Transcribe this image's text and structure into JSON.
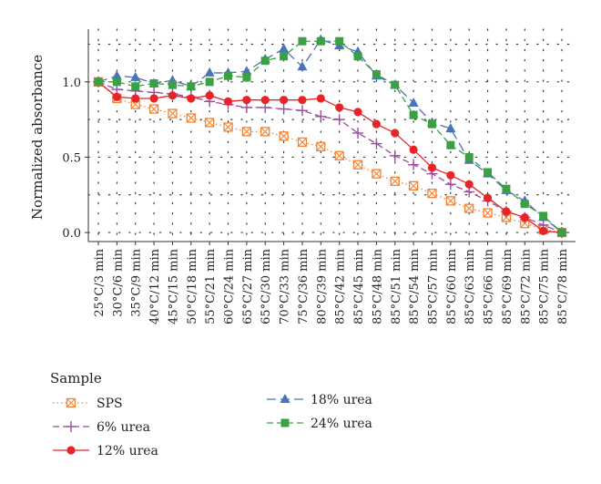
{
  "chart_data": {
    "type": "line",
    "ylabel": "Normalized absorbance",
    "y_ticks": [
      "0.0",
      "0.5",
      "1.0"
    ],
    "ylim": [
      -0.06,
      1.35
    ],
    "grid": "dotted",
    "legend_position": "bottom-left",
    "legend_title": "Sample",
    "categories": [
      "25°C/3 min",
      "30°C/6 min",
      "35°C/9 min",
      "40°C/12 min",
      "45°C/15 min",
      "50°C/18 min",
      "55°C/21 min",
      "60°C/24 min",
      "65°C/27 min",
      "65°C/30 min",
      "70°C/33 min",
      "75°C/36 min",
      "80°C/39 min",
      "85°C/42 min",
      "85°C/45 min",
      "85°C/48 min",
      "85°C/51 min",
      "85°C/54 min",
      "85°C/57 min",
      "85°C/60 min",
      "85°C/63 min",
      "85°C/66 min",
      "85°C/69 min",
      "85°C/72 min",
      "85°C/75 min",
      "85°C/78 min"
    ],
    "series": [
      {
        "name": "SPS",
        "color": "#f58231",
        "marker": "box-x",
        "dash": "dotted",
        "values": [
          1.0,
          0.89,
          0.85,
          0.82,
          0.79,
          0.76,
          0.73,
          0.7,
          0.67,
          0.67,
          0.64,
          0.6,
          0.57,
          0.51,
          0.45,
          0.39,
          0.34,
          0.31,
          0.26,
          0.21,
          0.16,
          0.13,
          0.1,
          0.06,
          0.02,
          0.0
        ]
      },
      {
        "name": "6% urea",
        "color": "#9b4c9e",
        "marker": "plus",
        "dash": "dashed",
        "values": [
          1.0,
          0.95,
          0.94,
          0.93,
          0.92,
          0.9,
          0.87,
          0.85,
          0.83,
          0.83,
          0.82,
          0.81,
          0.77,
          0.75,
          0.66,
          0.59,
          0.51,
          0.45,
          0.39,
          0.32,
          0.27,
          0.21,
          0.14,
          0.1,
          0.05,
          0.0
        ]
      },
      {
        "name": "12% urea",
        "color": "#e8242b",
        "marker": "circle",
        "dash": "solid",
        "values": [
          1.0,
          0.9,
          0.89,
          0.89,
          0.91,
          0.89,
          0.91,
          0.87,
          0.88,
          0.88,
          0.88,
          0.88,
          0.89,
          0.83,
          0.8,
          0.72,
          0.66,
          0.55,
          0.43,
          0.38,
          0.32,
          0.23,
          0.14,
          0.1,
          0.01,
          0.0
        ]
      },
      {
        "name": "18% urea",
        "color": "#4a73b8",
        "marker": "triangle",
        "dash": "longdash",
        "values": [
          1.0,
          1.04,
          1.03,
          0.99,
          1.01,
          0.97,
          1.06,
          1.06,
          1.07,
          1.15,
          1.22,
          1.1,
          1.28,
          1.24,
          1.2,
          1.04,
          0.98,
          0.86,
          0.73,
          0.69,
          0.48,
          0.39,
          0.28,
          0.21,
          0.1,
          0.0
        ]
      },
      {
        "name": "24% urea",
        "color": "#3aa142",
        "marker": "square",
        "dash": "dashed",
        "values": [
          1.0,
          1.0,
          0.97,
          0.99,
          0.98,
          0.97,
          1.0,
          1.04,
          1.03,
          1.14,
          1.17,
          1.27,
          1.27,
          1.27,
          1.17,
          1.05,
          0.98,
          0.78,
          0.72,
          0.58,
          0.5,
          0.4,
          0.29,
          0.19,
          0.11,
          0.0
        ]
      }
    ]
  }
}
